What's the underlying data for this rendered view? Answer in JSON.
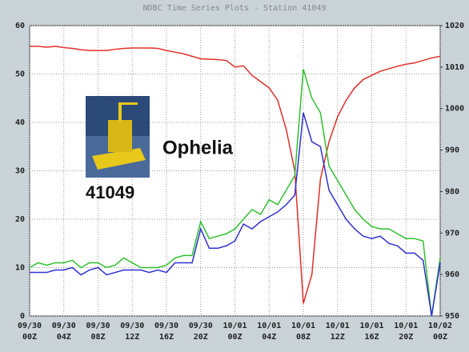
{
  "chart_data": {
    "type": "line",
    "title": "NDBC Time Series Plots - Station 41049",
    "annotations": [
      "41049",
      "Ophelia"
    ],
    "x": [
      0,
      1,
      2,
      3,
      4,
      5,
      6,
      7,
      8,
      9,
      10,
      11,
      12,
      13,
      14,
      15,
      16,
      17,
      18,
      19,
      20,
      21,
      22,
      23,
      24,
      25,
      26,
      27,
      28,
      29,
      30,
      31,
      32,
      33,
      34,
      35,
      36,
      37,
      38,
      39,
      40,
      41,
      42,
      43,
      44,
      45,
      46,
      47,
      48
    ],
    "xlim": [
      0,
      48
    ],
    "xticks": [
      {
        "value": 0,
        "label": [
          "09/30",
          "00Z"
        ]
      },
      {
        "value": 4,
        "label": [
          "09/30",
          "04Z"
        ]
      },
      {
        "value": 8,
        "label": [
          "09/30",
          "08Z"
        ]
      },
      {
        "value": 12,
        "label": [
          "09/30",
          "12Z"
        ]
      },
      {
        "value": 16,
        "label": [
          "09/30",
          "16Z"
        ]
      },
      {
        "value": 20,
        "label": [
          "09/30",
          "20Z"
        ]
      },
      {
        "value": 24,
        "label": [
          "10/01",
          "00Z"
        ]
      },
      {
        "value": 28,
        "label": [
          "10/01",
          "04Z"
        ]
      },
      {
        "value": 32,
        "label": [
          "10/01",
          "08Z"
        ]
      },
      {
        "value": 36,
        "label": [
          "10/01",
          "12Z"
        ]
      },
      {
        "value": 40,
        "label": [
          "10/01",
          "16Z"
        ]
      },
      {
        "value": 44,
        "label": [
          "10/01",
          "20Z"
        ]
      },
      {
        "value": 48,
        "label": [
          "10/02",
          "00Z"
        ]
      }
    ],
    "ylim": [
      0,
      60
    ],
    "yticks": [
      0,
      10,
      20,
      30,
      40,
      50,
      60
    ],
    "y2lim": [
      950,
      1020
    ],
    "y2ticks": [
      950,
      960,
      970,
      980,
      990,
      1000,
      1010,
      1020
    ],
    "grid": true,
    "series": [
      {
        "color": "#e0302a",
        "axis": "y2",
        "values": [
          1015,
          1015,
          1014.8,
          1015,
          1014.7,
          1014.5,
          1014.2,
          1014,
          1014,
          1014,
          1014.3,
          1014.5,
          1014.6,
          1014.6,
          1014.6,
          1014.5,
          1014,
          1013.6,
          1013.2,
          1012.6,
          1012,
          1011.9,
          1011.8,
          1011.6,
          1010,
          1010.3,
          1008,
          1006.5,
          1005,
          1002,
          995,
          985,
          953,
          960,
          983,
          992,
          998,
          1002,
          1005,
          1007,
          1008,
          1009,
          1009.6,
          1010.2,
          1010.7,
          1011,
          1011.6,
          1012.2,
          1012.6
        ]
      },
      {
        "color": "#2fc02f",
        "values": [
          10,
          11,
          10.5,
          11,
          11,
          11.5,
          10,
          11,
          11,
          10,
          10.5,
          12,
          11,
          10,
          10,
          10,
          10.5,
          12,
          12.5,
          12.5,
          19.5,
          16,
          16.5,
          17,
          18,
          20,
          22,
          21,
          24,
          23,
          26,
          29,
          51,
          45,
          42,
          31,
          28,
          25,
          22,
          20,
          18.5,
          18,
          18,
          17,
          16,
          16,
          15.5,
          0,
          12
        ]
      },
      {
        "color": "#3030d0",
        "values": [
          9,
          9,
          9,
          9.5,
          9.5,
          10,
          8.5,
          9.5,
          10,
          8.5,
          9,
          9.5,
          9.5,
          9.5,
          9,
          9.5,
          9,
          11,
          11,
          11,
          18,
          14,
          14,
          14.5,
          15.5,
          19,
          18,
          19.5,
          20.5,
          21.5,
          23,
          25,
          42,
          36,
          35,
          26,
          23,
          20,
          18,
          16.5,
          16,
          16.5,
          15,
          14.5,
          13,
          13,
          11.5,
          0,
          11
        ]
      }
    ]
  }
}
